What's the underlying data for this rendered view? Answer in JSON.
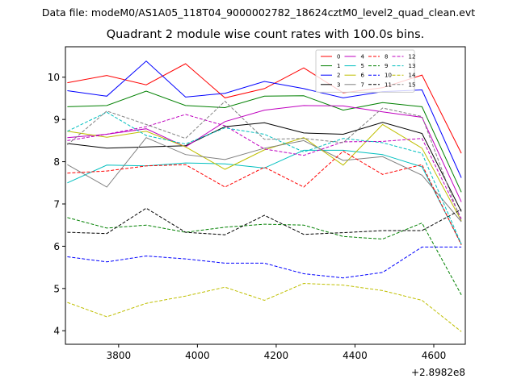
{
  "suptitle": "Data file: modeM0/AS1A05_118T04_9000002782_18624cztM0_level2_quad_clean.evt",
  "chart_data": {
    "type": "line",
    "title": "Quadrant 2 module wise count rates with 100.0s bins.",
    "xlabel": "",
    "ylabel": "",
    "x_offset_label": "+2.8982e8",
    "xlim": [
      3665,
      4680
    ],
    "ylim": [
      3.68,
      10.72
    ],
    "xticks": [
      3800,
      4000,
      4200,
      4400,
      4600
    ],
    "yticks": [
      4,
      5,
      6,
      7,
      8,
      9,
      10
    ],
    "grid": false,
    "legend_position": "top-right",
    "x": [
      3670,
      3770,
      3870,
      3970,
      4070,
      4170,
      4270,
      4370,
      4470,
      4570,
      4670
    ],
    "series": [
      {
        "name": "0",
        "color": "#ff0000",
        "dash": "solid",
        "values": [
          9.87,
          10.04,
          9.82,
          10.32,
          9.51,
          9.73,
          10.22,
          9.63,
          9.75,
          10.05,
          8.2
        ]
      },
      {
        "name": "1",
        "color": "#008000",
        "dash": "solid",
        "values": [
          9.3,
          9.33,
          9.67,
          9.33,
          9.28,
          9.55,
          9.56,
          9.22,
          9.4,
          9.3,
          7.28
        ]
      },
      {
        "name": "2",
        "color": "#0000ff",
        "dash": "solid",
        "values": [
          9.68,
          9.55,
          10.38,
          9.53,
          9.62,
          9.9,
          9.73,
          9.51,
          9.66,
          9.7,
          7.62
        ]
      },
      {
        "name": "3",
        "color": "#000000",
        "dash": "solid",
        "values": [
          8.43,
          8.32,
          8.35,
          8.38,
          8.83,
          8.92,
          8.68,
          8.65,
          8.93,
          8.67,
          6.82
        ]
      },
      {
        "name": "4",
        "color": "#bf00bf",
        "dash": "solid",
        "values": [
          8.57,
          8.65,
          8.78,
          8.35,
          8.95,
          9.22,
          9.33,
          9.32,
          9.18,
          9.05,
          7.05
        ]
      },
      {
        "name": "5",
        "color": "#00bfbf",
        "dash": "solid",
        "values": [
          7.5,
          7.92,
          7.9,
          7.97,
          7.95,
          7.85,
          8.27,
          8.27,
          8.17,
          7.88,
          6.05
        ]
      },
      {
        "name": "6",
        "color": "#bfbf00",
        "dash": "solid",
        "values": [
          8.72,
          8.58,
          8.72,
          8.35,
          7.82,
          8.28,
          8.57,
          7.92,
          8.88,
          8.32,
          6.6
        ]
      },
      {
        "name": "7",
        "color": "#808080",
        "dash": "solid",
        "values": [
          7.93,
          7.4,
          8.57,
          8.17,
          8.05,
          8.32,
          8.5,
          8.03,
          8.12,
          7.68,
          6.58
        ]
      },
      {
        "name": "8",
        "color": "#ff0000",
        "dash": "dashed",
        "values": [
          7.73,
          7.78,
          7.9,
          7.93,
          7.4,
          7.87,
          7.4,
          8.25,
          7.7,
          7.93,
          6.03
        ]
      },
      {
        "name": "9",
        "color": "#008000",
        "dash": "dashed",
        "values": [
          6.68,
          6.43,
          6.5,
          6.33,
          6.45,
          6.52,
          6.5,
          6.23,
          6.17,
          6.55,
          4.85
        ]
      },
      {
        "name": "10",
        "color": "#0000ff",
        "dash": "dashed",
        "values": [
          5.75,
          5.63,
          5.77,
          5.7,
          5.6,
          5.6,
          5.35,
          5.25,
          5.38,
          5.98,
          5.98
        ]
      },
      {
        "name": "11",
        "color": "#000000",
        "dash": "dashed",
        "values": [
          6.33,
          6.3,
          6.9,
          6.33,
          6.27,
          6.73,
          6.28,
          6.32,
          6.37,
          6.37,
          6.87
        ]
      },
      {
        "name": "12",
        "color": "#bf00bf",
        "dash": "dashed",
        "values": [
          8.5,
          8.65,
          8.83,
          9.12,
          8.85,
          8.3,
          8.15,
          8.47,
          8.48,
          8.55,
          6.65
        ]
      },
      {
        "name": "13",
        "color": "#00bfbf",
        "dash": "dashed",
        "values": [
          8.72,
          9.17,
          8.62,
          8.42,
          8.8,
          8.65,
          8.23,
          8.55,
          8.45,
          8.2,
          6.05
        ]
      },
      {
        "name": "14",
        "color": "#bfbf00",
        "dash": "dashed",
        "values": [
          4.67,
          4.33,
          4.65,
          4.82,
          5.03,
          4.72,
          5.12,
          5.08,
          4.95,
          4.72,
          3.98
        ]
      },
      {
        "name": "15",
        "color": "#808080",
        "dash": "dashed",
        "values": [
          8.4,
          9.2,
          8.88,
          8.55,
          9.43,
          8.53,
          8.55,
          8.45,
          9.27,
          9.07,
          6.58
        ]
      }
    ]
  }
}
